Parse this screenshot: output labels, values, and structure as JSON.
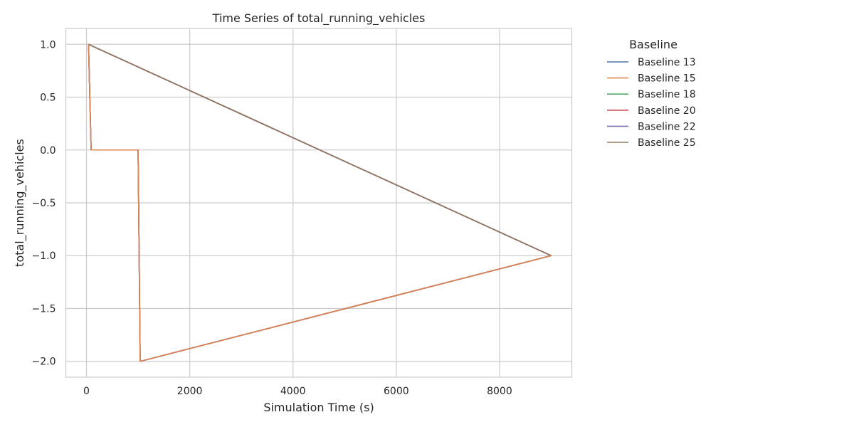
{
  "chart_data": {
    "type": "line",
    "title": "Time Series of total_running_vehicles",
    "xlabel": "Simulation Time (s)",
    "ylabel": "total_running_vehicles",
    "xlim": [
      -400,
      9400
    ],
    "ylim": [
      -2.15,
      1.15
    ],
    "xticks": [
      0,
      2000,
      4000,
      6000,
      8000
    ],
    "xtick_labels": [
      "0",
      "2000",
      "4000",
      "6000",
      "8000"
    ],
    "yticks": [
      1.0,
      0.5,
      0.0,
      -0.5,
      -1.0,
      -1.5,
      -2.0
    ],
    "ytick_labels": [
      "1.0",
      "0.5",
      "0.0",
      "−0.5",
      "−1.0",
      "−1.5",
      "−2.0"
    ],
    "grid": true,
    "legend": {
      "title": "Baseline",
      "placement": "outside-right"
    },
    "series": [
      {
        "name": "Baseline 13",
        "color": "#4c72b0",
        "x": [
          40,
          9000,
          1040,
          1000,
          90,
          40
        ],
        "y": [
          1.0,
          -1.0,
          -2.0,
          0.0,
          0.0,
          1.0
        ]
      },
      {
        "name": "Baseline 15",
        "color": "#dd8452",
        "x": [
          40,
          9000,
          1040,
          1000,
          90,
          40
        ],
        "y": [
          1.0,
          -1.0,
          -2.0,
          0.0,
          0.0,
          1.0
        ]
      },
      {
        "name": "Baseline 18",
        "color": "#55a868",
        "x": [
          40,
          9000,
          1040,
          1000,
          90,
          40
        ],
        "y": [
          1.0,
          -1.0,
          -2.0,
          0.0,
          0.0,
          1.0
        ]
      },
      {
        "name": "Baseline 20",
        "color": "#c44e52",
        "x": [
          40,
          9000,
          1040,
          1000,
          90,
          40
        ],
        "y": [
          1.0,
          -1.0,
          -2.0,
          0.0,
          0.0,
          1.0
        ]
      },
      {
        "name": "Baseline 22",
        "color": "#8172b3",
        "x": [
          40,
          9000,
          1040,
          1000,
          90,
          40
        ],
        "y": [
          1.0,
          -1.0,
          -2.0,
          0.0,
          0.0,
          1.0
        ]
      },
      {
        "name": "Baseline 25",
        "color": "#937860",
        "x": [
          40,
          9000
        ],
        "y": [
          1.0,
          -1.0
        ]
      },
      {
        "name": "Baseline 15",
        "color": "#dd8452",
        "x": [
          40,
          90,
          1000,
          1040,
          9000
        ],
        "y": [
          1.0,
          0.0,
          0.0,
          -2.0,
          -1.0
        ]
      }
    ]
  }
}
